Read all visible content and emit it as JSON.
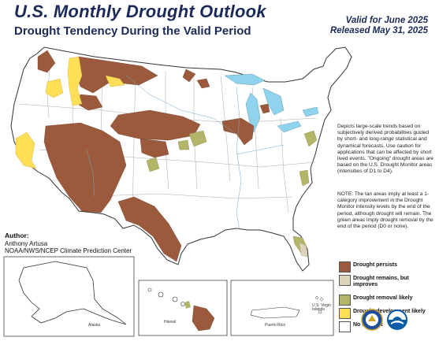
{
  "title": "U.S. Monthly Drought Outlook",
  "subtitle": "Drought Tendency During the Valid Period",
  "valid_for": "Valid for June 2025",
  "released": "Released May 31, 2025",
  "description": "Depicts large-scale trends based on subjectively derived probabilities guided by short- and long-range statistical and dynamical forecasts. Use caution for applications that can be affected by short lived events. \"Ongoing\" drought areas are based on the U.S. Drought Monitor areas (intensities of D1 to D4).",
  "note": "NOTE: The tan areas imply at least a 1-category improvement in the Drought Monitor intensity levels by the end of the period, although drought will remain. The green areas imply drought removal by the end of the period (D0 or none).",
  "author": {
    "heading": "Author:",
    "name": "Anthony Artusa",
    "org": "NOAA/NWS/NCEP Climate Prediction Center"
  },
  "legend": [
    {
      "label": "Drought persists",
      "color": "#9c5a3c"
    },
    {
      "label": "Drought remains, but improves",
      "color": "#ded3bb"
    },
    {
      "label": "Drought removal likely",
      "color": "#b5b56a"
    },
    {
      "label": "Drought development likely",
      "color": "#ffdf55"
    },
    {
      "label": "No drought",
      "color": "#ffffff"
    }
  ],
  "insets": {
    "alaska": "Alaska",
    "hawaii": "Hawaii",
    "puerto_rico": "Puerto Rico",
    "virgin_islands": "U.S. Virgin Islands"
  },
  "colors": {
    "persist": "#9c5a3c",
    "improve": "#ded3bb",
    "removal": "#b5b56a",
    "development": "#ffdf55",
    "water": "#8fd3ec",
    "title": "#1b2a57"
  },
  "logos": [
    "doc-seal-icon",
    "noaa-logo-icon"
  ]
}
